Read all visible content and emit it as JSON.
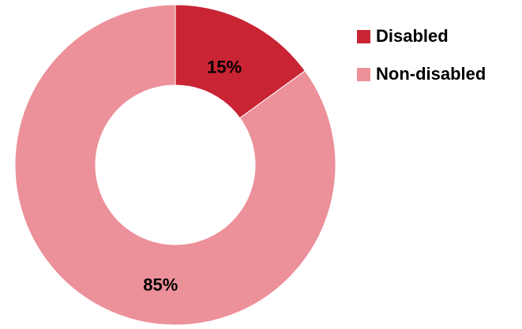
{
  "chart_data": {
    "type": "pie",
    "donut": true,
    "title": "",
    "categories": [
      "Disabled",
      "Non-disabled"
    ],
    "values": [
      15,
      85
    ],
    "value_labels": [
      "15%",
      "85%"
    ],
    "colors": [
      "#C92434",
      "#EC9099"
    ],
    "legend": {
      "position": "top-right",
      "entries": [
        "Disabled",
        "Non-disabled"
      ]
    }
  }
}
